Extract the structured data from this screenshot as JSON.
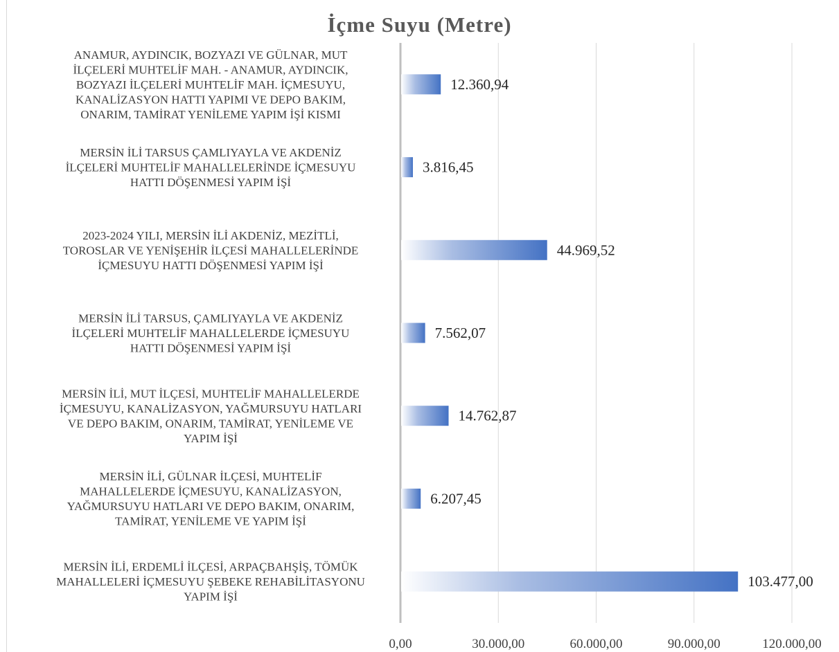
{
  "chart_data": {
    "type": "bar",
    "orientation": "horizontal",
    "title": "İçme Suyu (Metre)",
    "categories": [
      [
        "ANAMUR, AYDINCIK, BOZYAZI VE GÜLNAR, MUT",
        "İLÇELERİ MUHTELİF MAH. - ANAMUR, AYDINCIK,",
        "BOZYAZI İLÇELERİ MUHTELİF MAH. İÇMESUYU,",
        "KANALİZASYON HATTI YAPIMI VE DEPO BAKIM,",
        "ONARIM, TAMİRAT YENİLEME YAPIM İŞİ KISMI"
      ],
      [
        "MERSİN İLİ TARSUS ÇAMLIYAYLA VE AKDENİZ",
        "İLÇELERİ MUHTELİF MAHALLELERİNDE İÇMESUYU",
        "HATTI DÖŞENMESİ YAPIM İŞİ"
      ],
      [
        "2023-2024 YILI, MERSİN İLİ AKDENİZ, MEZİTLİ,",
        "TOROSLAR VE YENİŞEHİR İLÇESİ MAHALLELERİNDE",
        "İÇMESUYU HATTI DÖŞENMESİ YAPIM İŞİ"
      ],
      [
        "MERSİN İLİ TARSUS, ÇAMLIYAYLA VE AKDENİZ",
        "İLÇELERİ MUHTELİF MAHALLELERDE İÇMESUYU",
        "HATTI DÖŞENMESİ YAPIM İŞİ"
      ],
      [
        "MERSİN İLİ, MUT İLÇESİ, MUHTELİF MAHALLELERDE",
        "İÇMESUYU, KANALİZASYON, YAĞMURSUYU HATLARI",
        "VE DEPO BAKIM, ONARIM, TAMİRAT, YENİLEME VE",
        "YAPIM İŞİ"
      ],
      [
        "MERSİN İLİ, GÜLNAR İLÇESİ, MUHTELİF",
        "MAHALLELERDE İÇMESUYU, KANALİZASYON,",
        "YAĞMURSUYU HATLARI VE DEPO BAKIM, ONARIM,",
        "TAMİRAT, YENİLEME VE YAPIM İŞİ"
      ],
      [
        "MERSİN İLİ, ERDEMLİ İLÇESİ, ARPAÇBAHŞİŞ, TÖMÜK",
        "MAHALLELERİ İÇMESUYU ŞEBEKE REHABİLİTASYONU",
        "YAPIM İŞİ"
      ]
    ],
    "values": [
      12360.94,
      3816.45,
      44969.52,
      7562.07,
      14762.87,
      6207.45,
      103477.0
    ],
    "value_labels": [
      "12.360,94",
      "3.816,45",
      "44.969,52",
      "7.562,07",
      "14.762,87",
      "6.207,45",
      "103.477,00"
    ],
    "xlim": [
      0,
      120000
    ],
    "xticks": [
      0,
      30000,
      60000,
      90000,
      120000
    ],
    "xtick_labels": [
      "0,00",
      "30.000,00",
      "60.000,00",
      "90.000,00",
      "120.000,00"
    ],
    "grid": "vertical",
    "colors": {
      "bar_start": "#ffffff",
      "bar_end": "#4472c4",
      "grid": "#d9d9d9",
      "axis": "#bfbfbf"
    }
  }
}
